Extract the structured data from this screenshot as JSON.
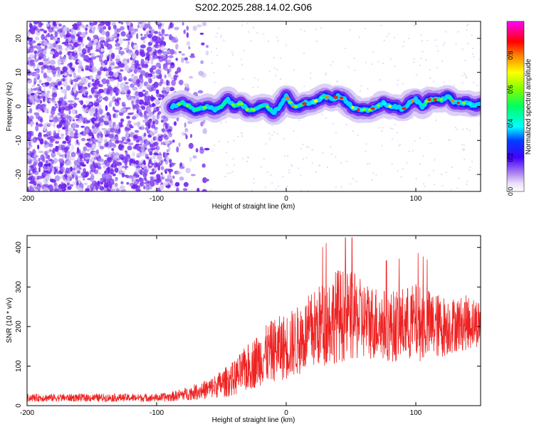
{
  "title": "S202.2025.288.14.02.G06",
  "chart_data": [
    {
      "type": "heatmap",
      "name": "spectrogram",
      "title": "S202.2025.288.14.02.G06",
      "xlabel": "Height of straight line (km)",
      "ylabel": "Frequency (Hz)",
      "xlim": [
        -200,
        150
      ],
      "ylim": [
        -25,
        25
      ],
      "x_ticks": [
        -200,
        -100,
        0,
        100
      ],
      "y_ticks": [
        -20,
        -10,
        0,
        10,
        20
      ],
      "colorbar": {
        "label": "Normalized spectral amplitude",
        "range": [
          0.0,
          1.0
        ],
        "ticks": [
          0.0,
          0.2,
          0.4,
          0.6,
          0.8
        ],
        "tick_labels": [
          "0.0",
          "0.2",
          "0.4",
          "0.6",
          "0.8"
        ],
        "colormap": [
          "#ffffff",
          "#d6c8f5",
          "#7b2ff0",
          "#0000ff",
          "#00ffff",
          "#00ff00",
          "#ffff00",
          "#ff8000",
          "#ff0000",
          "#ff00ff"
        ]
      },
      "ridge": {
        "x": [
          -88,
          -80,
          -70,
          -60,
          -55,
          -50,
          -45,
          -40,
          -35,
          -30,
          -25,
          -20,
          -15,
          -10,
          -5,
          0,
          5,
          10,
          15,
          20,
          25,
          30,
          35,
          40,
          45,
          50,
          55,
          60,
          65,
          70,
          75,
          80,
          85,
          90,
          95,
          100,
          105,
          110,
          115,
          120,
          125,
          130,
          135,
          140,
          145,
          150
        ],
        "freq": [
          0,
          1,
          -1,
          0,
          -1,
          0,
          2,
          0,
          1,
          -1,
          -1,
          0,
          0,
          -2,
          0,
          3,
          0,
          0,
          1,
          1,
          2,
          3,
          2,
          3,
          2,
          0,
          -1,
          -1,
          -1,
          0,
          1,
          0,
          0,
          -1,
          1,
          2,
          0,
          2,
          2,
          2,
          3,
          1,
          1,
          1,
          0,
          1
        ]
      },
      "noise_region_x": [
        -200,
        -60
      ],
      "signal_region_x": [
        -88,
        150
      ]
    },
    {
      "type": "line",
      "name": "snr",
      "xlabel": "Height of straight line (km)",
      "ylabel": "SNR (10 * v/v)",
      "xlim": [
        -200,
        150
      ],
      "ylim": [
        0,
        430
      ],
      "x_ticks": [
        -200,
        -100,
        0,
        100
      ],
      "y_ticks": [
        0,
        100,
        200,
        300,
        400
      ],
      "color": "#ee2222",
      "envelope": {
        "x": [
          -200,
          -150,
          -100,
          -90,
          -80,
          -70,
          -60,
          -50,
          -40,
          -30,
          -20,
          -10,
          0,
          10,
          20,
          30,
          40,
          50,
          60,
          70,
          80,
          90,
          100,
          110,
          120,
          130,
          140,
          150
        ],
        "mean": [
          20,
          20,
          20,
          22,
          28,
          35,
          42,
          55,
          70,
          95,
          120,
          140,
          150,
          165,
          190,
          210,
          230,
          225,
          215,
          210,
          200,
          205,
          210,
          205,
          200,
          205,
          210,
          210
        ],
        "spread": [
          10,
          10,
          10,
          12,
          15,
          20,
          25,
          35,
          45,
          60,
          70,
          80,
          85,
          90,
          100,
          110,
          120,
          115,
          100,
          95,
          90,
          95,
          100,
          90,
          80,
          70,
          70,
          60
        ]
      },
      "peak_max": 425
    }
  ]
}
